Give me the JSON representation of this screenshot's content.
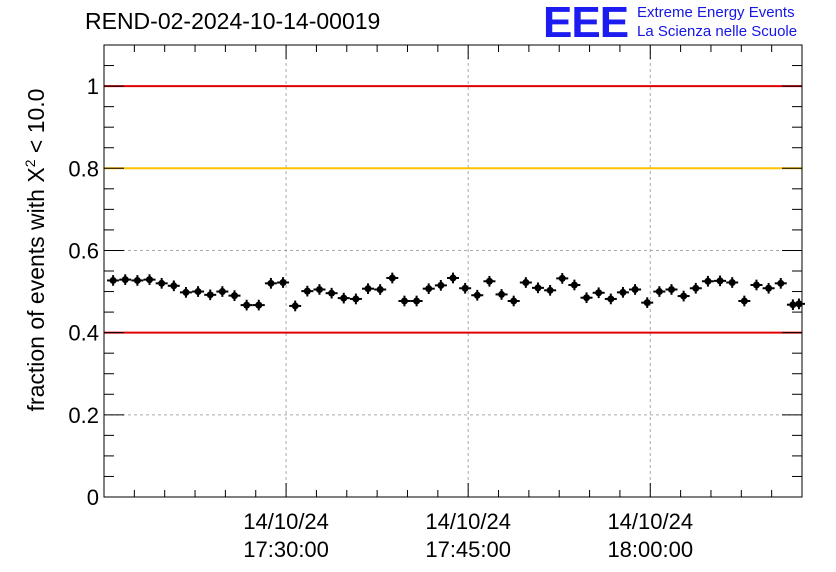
{
  "header": {
    "title": "REND-02-2024-10-14-00019",
    "logo_mark": "EEE",
    "logo_line1": "Extreme Energy Events",
    "logo_line2": "La Scienza nelle Scuole"
  },
  "colors": {
    "red_line": "#e00000",
    "yellow_line": "#ffc000",
    "marker": "#000000",
    "grid": "#aaaaaa",
    "logo": "#1c1cf0"
  },
  "chart_data": {
    "type": "scatter",
    "title": "REND-02-2024-10-14-00019",
    "xlabel": "",
    "ylabel": "fraction of events with X² < 10.0",
    "ylabel_base": "fraction of events with X",
    "ylabel_sup": "2",
    "ylabel_tail": " < 10.0",
    "x_axis": "time",
    "xlim": [
      "2024-10-14 17:15:00",
      "2024-10-14 18:12:30"
    ],
    "ylim": [
      0,
      1.1
    ],
    "yticks": [
      0,
      0.2,
      0.4,
      0.6,
      0.8,
      1
    ],
    "ytick_labels": [
      "0",
      "0.2",
      "0.4",
      "0.6",
      "0.8",
      "1"
    ],
    "xticks": [
      "2024-10-14 17:30:00",
      "2024-10-14 17:45:00",
      "2024-10-14 18:00:00"
    ],
    "xtick_labels": [
      [
        "14/10/24",
        "17:30:00"
      ],
      [
        "14/10/24",
        "17:45:00"
      ],
      [
        "14/10/24",
        "18:00:00"
      ]
    ],
    "grid": true,
    "reference_lines": [
      {
        "y": 1.0,
        "color": "red"
      },
      {
        "y": 0.8,
        "color": "yellow"
      },
      {
        "y": 0.4,
        "color": "red"
      }
    ],
    "series": [
      {
        "x": [
          "17:15:45",
          "17:16:45",
          "17:17:45",
          "17:18:45",
          "17:19:45",
          "17:20:45",
          "17:21:45",
          "17:22:45",
          "17:23:45",
          "17:24:45",
          "17:25:45",
          "17:26:45",
          "17:27:45",
          "17:28:45",
          "17:29:45",
          "17:30:45",
          "17:31:45",
          "17:32:45",
          "17:33:45",
          "17:34:45",
          "17:35:45",
          "17:36:45",
          "17:37:45",
          "17:38:45",
          "17:39:45",
          "17:40:45",
          "17:41:45",
          "17:42:45",
          "17:43:45",
          "17:44:45",
          "17:45:45",
          "17:46:45",
          "17:47:45",
          "17:48:45",
          "17:49:45",
          "17:50:45",
          "17:51:45",
          "17:52:45",
          "17:53:45",
          "17:54:45",
          "17:55:45",
          "17:56:45",
          "17:57:45",
          "17:58:45",
          "17:59:45",
          "18:00:45",
          "18:01:45",
          "18:02:45",
          "18:03:45",
          "18:04:45",
          "18:05:45",
          "18:06:45",
          "18:07:45",
          "18:08:45",
          "18:09:45",
          "18:10:45",
          "18:11:45",
          "18:12:15"
        ],
        "values": [
          0.527,
          0.529,
          0.527,
          0.529,
          0.52,
          0.514,
          0.498,
          0.5,
          0.492,
          0.5,
          0.49,
          0.467,
          0.467,
          0.52,
          0.522,
          0.465,
          0.501,
          0.505,
          0.496,
          0.484,
          0.482,
          0.507,
          0.505,
          0.533,
          0.477,
          0.477,
          0.507,
          0.515,
          0.533,
          0.508,
          0.491,
          0.525,
          0.493,
          0.477,
          0.522,
          0.509,
          0.503,
          0.532,
          0.516,
          0.485,
          0.497,
          0.482,
          0.498,
          0.505,
          0.473,
          0.5,
          0.505,
          0.489,
          0.508,
          0.525,
          0.526,
          0.522,
          0.477,
          0.516,
          0.508,
          0.52,
          0.468,
          0.47
        ],
        "errors": [
          0.013,
          0.013,
          0.013,
          0.013,
          0.013,
          0.013,
          0.013,
          0.013,
          0.013,
          0.013,
          0.013,
          0.013,
          0.013,
          0.013,
          0.013,
          0.013,
          0.013,
          0.013,
          0.013,
          0.013,
          0.013,
          0.013,
          0.013,
          0.013,
          0.013,
          0.013,
          0.013,
          0.013,
          0.013,
          0.013,
          0.013,
          0.013,
          0.013,
          0.013,
          0.013,
          0.013,
          0.013,
          0.013,
          0.013,
          0.013,
          0.013,
          0.013,
          0.013,
          0.013,
          0.013,
          0.013,
          0.013,
          0.013,
          0.013,
          0.013,
          0.013,
          0.013,
          0.013,
          0.013,
          0.013,
          0.013,
          0.013,
          0.013
        ]
      }
    ]
  }
}
